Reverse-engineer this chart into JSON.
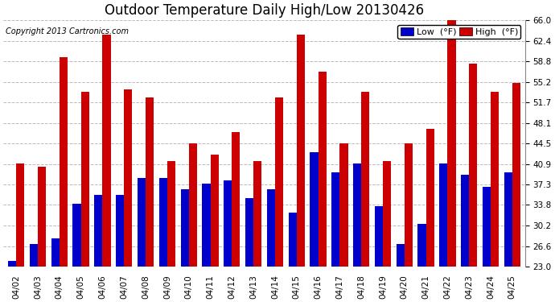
{
  "title": "Outdoor Temperature Daily High/Low 20130426",
  "copyright": "Copyright 2013 Cartronics.com",
  "legend_labels": [
    "Low  (°F)",
    "High  (°F)"
  ],
  "low_color": "#0000cc",
  "high_color": "#cc0000",
  "ylim": [
    23.0,
    66.0
  ],
  "yticks": [
    23.0,
    26.6,
    30.2,
    33.8,
    37.3,
    40.9,
    44.5,
    48.1,
    51.7,
    55.2,
    58.8,
    62.4,
    66.0
  ],
  "categories": [
    "04/02",
    "04/03",
    "04/04",
    "04/05",
    "04/06",
    "04/07",
    "04/08",
    "04/09",
    "04/10",
    "04/11",
    "04/12",
    "04/13",
    "04/14",
    "04/15",
    "04/16",
    "04/17",
    "04/18",
    "04/19",
    "04/20",
    "04/21",
    "04/22",
    "04/23",
    "04/24",
    "04/25"
  ],
  "high_values": [
    41.0,
    40.5,
    59.5,
    53.5,
    63.5,
    54.0,
    52.5,
    41.5,
    44.5,
    42.5,
    46.5,
    41.5,
    52.5,
    63.5,
    57.0,
    44.5,
    53.5,
    41.5,
    44.5,
    47.0,
    66.0,
    58.5,
    53.5,
    55.0
  ],
  "low_values": [
    24.0,
    27.0,
    28.0,
    34.0,
    35.5,
    35.5,
    38.5,
    38.5,
    36.5,
    37.5,
    38.0,
    35.0,
    36.5,
    32.5,
    43.0,
    39.5,
    41.0,
    33.5,
    27.0,
    30.5,
    41.0,
    39.0,
    37.0,
    39.5
  ],
  "grid_color": "#bbbbbb",
  "title_fontsize": 12,
  "tick_fontsize": 7.5,
  "legend_fontsize": 8,
  "bar_width": 0.38,
  "figure_bg": "#ffffff",
  "axes_bg": "#ffffff",
  "ymin": 23.0
}
